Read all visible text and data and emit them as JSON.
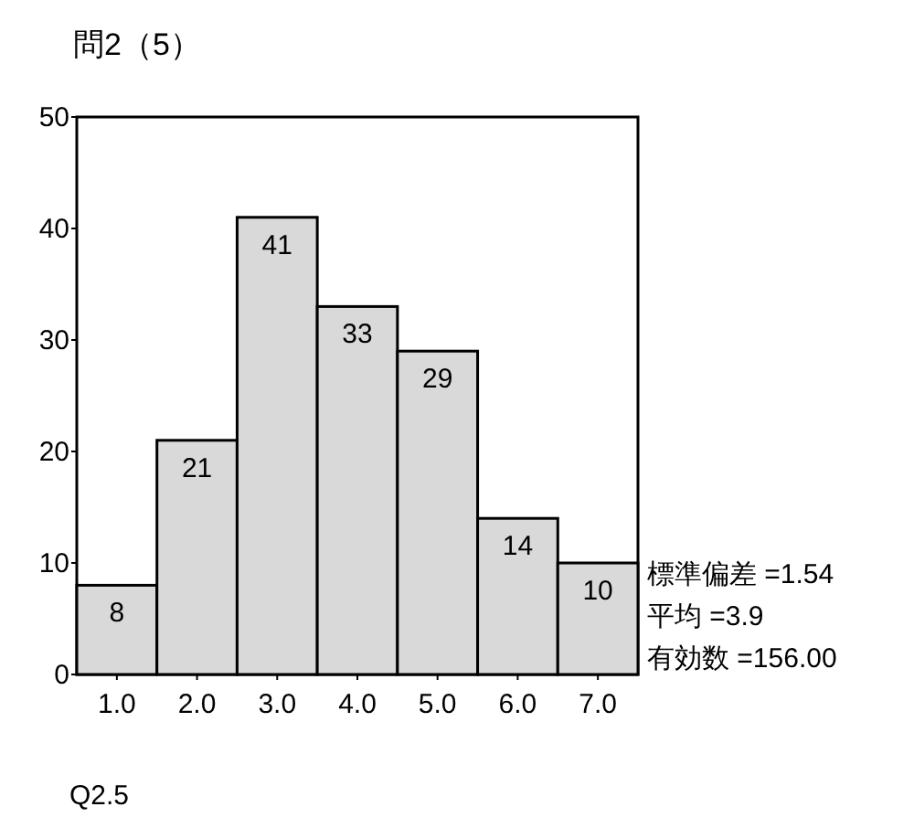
{
  "chart_data": {
    "type": "histogram",
    "title": "問2（5）",
    "xlabel": "Q2.5",
    "bins": [
      0.5,
      1.5,
      2.5,
      3.5,
      4.5,
      5.5,
      6.5,
      7.5
    ],
    "values": [
      8,
      21,
      41,
      33,
      29,
      14,
      10
    ],
    "color": "#d9d9d9",
    "xlim": [
      0.5,
      7.5
    ],
    "xticks": [
      {
        "value": 1,
        "label": "1.0"
      },
      {
        "value": 2,
        "label": "2.0"
      },
      {
        "value": 3,
        "label": "3.0"
      },
      {
        "value": 4,
        "label": "4.0"
      },
      {
        "value": 5,
        "label": "5.0"
      },
      {
        "value": 6,
        "label": "6.0"
      },
      {
        "value": 7,
        "label": "7.0"
      }
    ],
    "ylim": [
      0,
      50
    ],
    "yticks": [
      0,
      10,
      20,
      30,
      40,
      50
    ],
    "data_labels": true,
    "annotations": [
      "標準偏差 =1.54",
      "平均 =3.9",
      "有効数 =156.00"
    ]
  }
}
